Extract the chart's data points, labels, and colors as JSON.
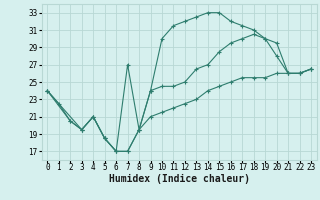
{
  "title": "",
  "xlabel": "Humidex (Indice chaleur)",
  "ylabel": "",
  "background_color": "#d6f0ee",
  "grid_color": "#b8d8d4",
  "line_color": "#2e7d6e",
  "xlim": [
    -0.5,
    23.5
  ],
  "ylim": [
    16,
    34
  ],
  "xticks": [
    0,
    1,
    2,
    3,
    4,
    5,
    6,
    7,
    8,
    9,
    10,
    11,
    12,
    13,
    14,
    15,
    16,
    17,
    18,
    19,
    20,
    21,
    22,
    23
  ],
  "yticks": [
    17,
    19,
    21,
    23,
    25,
    27,
    29,
    31,
    33
  ],
  "line1_x": [
    0,
    1,
    2,
    3,
    4,
    5,
    6,
    7,
    8,
    9,
    10,
    11,
    12,
    13,
    14,
    15,
    16,
    17,
    18,
    19,
    20,
    21,
    22,
    23
  ],
  "line1_y": [
    24,
    22.5,
    20.5,
    19.5,
    21,
    18.5,
    17,
    17,
    19.5,
    24,
    30,
    31.5,
    32,
    32.5,
    33,
    33,
    32,
    31.5,
    31,
    30,
    29.5,
    26,
    26,
    26.5
  ],
  "line2_x": [
    0,
    2,
    3,
    4,
    5,
    6,
    7,
    8,
    9,
    10,
    11,
    12,
    13,
    14,
    15,
    16,
    17,
    18,
    19,
    20,
    21,
    22,
    23
  ],
  "line2_y": [
    24,
    20.5,
    19.5,
    21,
    18.5,
    17,
    27,
    19.5,
    24,
    24.5,
    24.5,
    25,
    26.5,
    27,
    28.5,
    29.5,
    30,
    30.5,
    30,
    28,
    26,
    26,
    26.5
  ],
  "line3_x": [
    0,
    3,
    4,
    5,
    6,
    7,
    8,
    9,
    10,
    11,
    12,
    13,
    14,
    15,
    16,
    17,
    18,
    19,
    20,
    21,
    22,
    23
  ],
  "line3_y": [
    24,
    19.5,
    21,
    18.5,
    17,
    17,
    19.5,
    21,
    21.5,
    22,
    22.5,
    23,
    24,
    24.5,
    25,
    25.5,
    25.5,
    25.5,
    26,
    26,
    26,
    26.5
  ],
  "tick_fontsize": 5.5,
  "xlabel_fontsize": 7,
  "linewidth": 0.8,
  "markersize": 2.5,
  "markeredgewidth": 0.8
}
